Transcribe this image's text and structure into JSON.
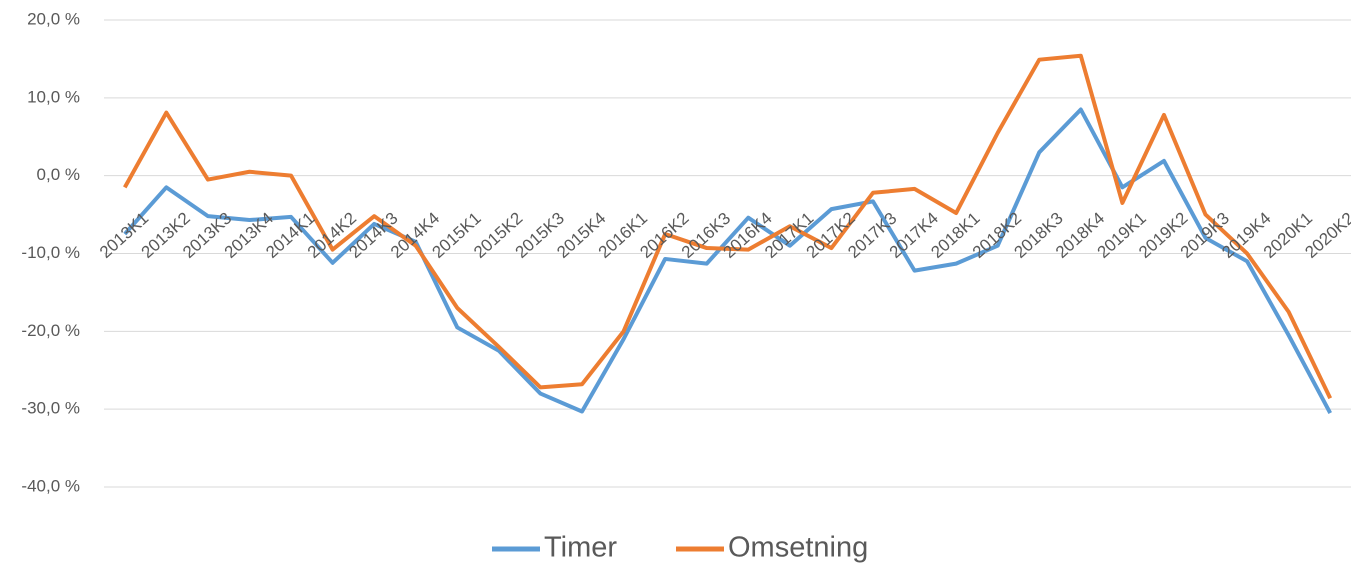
{
  "chart_data": {
    "type": "line",
    "categories": [
      "2013K1",
      "2013K2",
      "2013K3",
      "2013K4",
      "2014K1",
      "2014K2",
      "2014K3",
      "2014K4",
      "2015K1",
      "2015K2",
      "2015K3",
      "2015K4",
      "2016K1",
      "2016K2",
      "2016K3",
      "2016K4",
      "2017K1",
      "2017K2",
      "2017K3",
      "2017K4",
      "2018K1",
      "2018K2",
      "2018K3",
      "2018K4",
      "2019K1",
      "2019K2",
      "2019K3",
      "2019K4",
      "2020K1",
      "2020K2"
    ],
    "series": [
      {
        "name": "Timer",
        "color": "#5b9bd5",
        "values": [
          -7.5,
          -1.5,
          -5.2,
          -5.7,
          -5.3,
          -11.2,
          -6.2,
          -8.5,
          -19.5,
          -22.5,
          -28,
          -30.3,
          -21,
          -10.7,
          -11.3,
          -5.4,
          -9,
          -4.3,
          -3.3,
          -12.2,
          -11.3,
          -9,
          3,
          8.5,
          -1.5,
          1.9,
          -8,
          -11,
          -20.5,
          -30.5
        ]
      },
      {
        "name": "Omsetning",
        "color": "#ed7d31",
        "values": [
          -1.5,
          8.1,
          -0.5,
          0.5,
          0,
          -9.5,
          -5.2,
          -9,
          -17,
          -22,
          -27.2,
          -26.8,
          -20,
          -7.5,
          -9.3,
          -9.5,
          -6.5,
          -9.3,
          -2.2,
          -1.7,
          -4.8,
          5.5,
          14.9,
          15.4,
          -3.5,
          7.8,
          -5,
          -10,
          -17.5,
          -28.6
        ]
      }
    ],
    "ylim": [
      -40,
      20
    ],
    "yticks": [
      {
        "value": -40,
        "label": "-40,0 %"
      },
      {
        "value": -30,
        "label": "-30,0 %"
      },
      {
        "value": -20,
        "label": "-20,0 %"
      },
      {
        "value": -10,
        "label": "-10,0 %"
      },
      {
        "value": 0,
        "label": "0,0 %"
      },
      {
        "value": 10,
        "label": "10,0 %"
      },
      {
        "value": 20,
        "label": "20,0 %"
      }
    ],
    "grid": true,
    "legend": "bottom"
  }
}
